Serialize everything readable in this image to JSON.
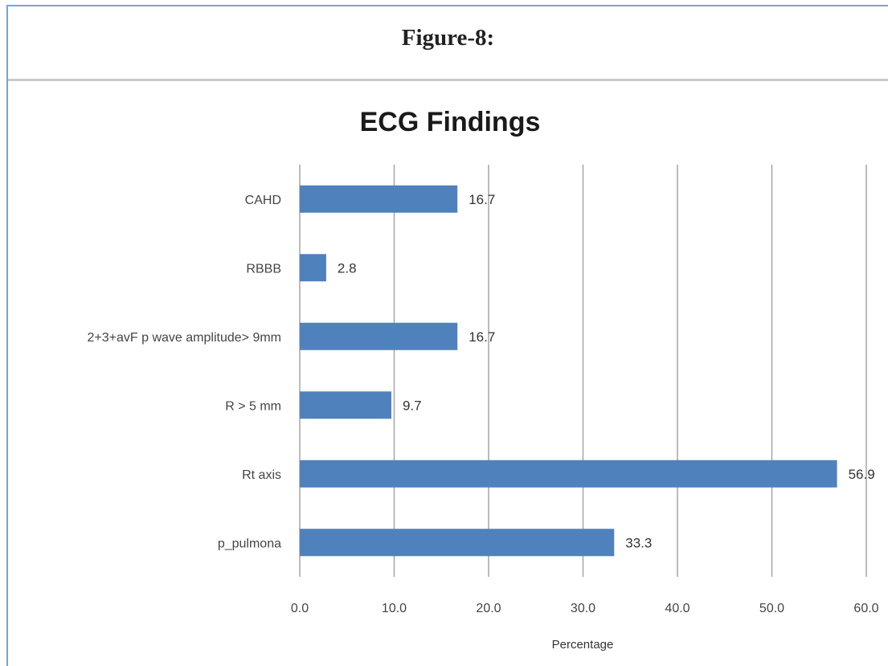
{
  "figure": {
    "label": "Figure-8:"
  },
  "chart_data": {
    "type": "bar",
    "orientation": "horizontal",
    "title": "ECG Findings",
    "categories": [
      "CAHD",
      "RBBB",
      "2+3+avF p wave amplitude> 9mm",
      "R > 5 mm",
      "Rt axis",
      "p_pulmona"
    ],
    "values": [
      16.7,
      2.8,
      16.7,
      9.7,
      56.9,
      33.3
    ],
    "value_labels": [
      "16.7",
      "2.8",
      "16.7",
      "9.7",
      "56.9",
      "33.3"
    ],
    "xlabel": "Percentage",
    "ylabel": "",
    "xlim": [
      0,
      60
    ],
    "xticks": [
      "0.0",
      "10.0",
      "20.0",
      "30.0",
      "40.0",
      "50.0",
      "60.0"
    ],
    "grid": "vertical",
    "legend": "none",
    "bar_color": "#4f81bd",
    "grid_color": "#a6a6a6"
  }
}
